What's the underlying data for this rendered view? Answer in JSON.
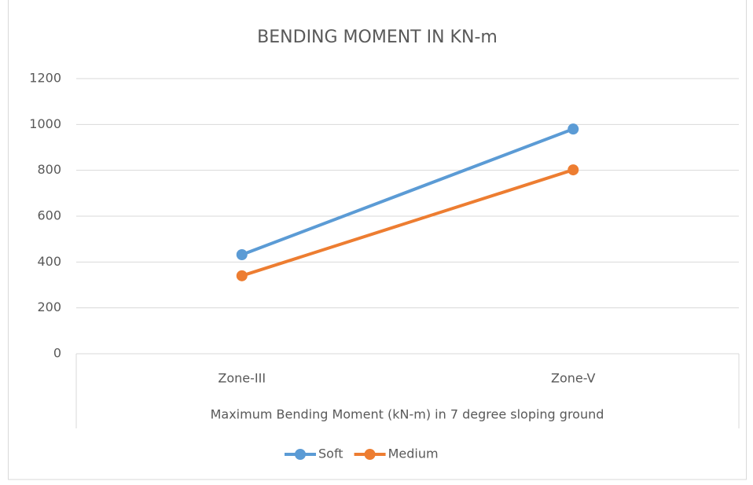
{
  "chart_data": {
    "type": "line",
    "title": "BENDING MOMENT IN KN-m",
    "x_label": "Maximum Bending Moment (kN-m) in 7 degree sloping ground",
    "categories": [
      "Zone-III",
      "Zone-V"
    ],
    "series": [
      {
        "name": "Soft",
        "color": "#5b9bd5",
        "values": [
          432,
          980
        ]
      },
      {
        "name": "Medium",
        "color": "#ed7d31",
        "values": [
          340,
          802
        ]
      }
    ],
    "ylim": [
      0,
      1200
    ],
    "yticks": [
      0,
      200,
      400,
      600,
      800,
      1000,
      1200
    ],
    "grid": true,
    "legend": "bottom"
  }
}
